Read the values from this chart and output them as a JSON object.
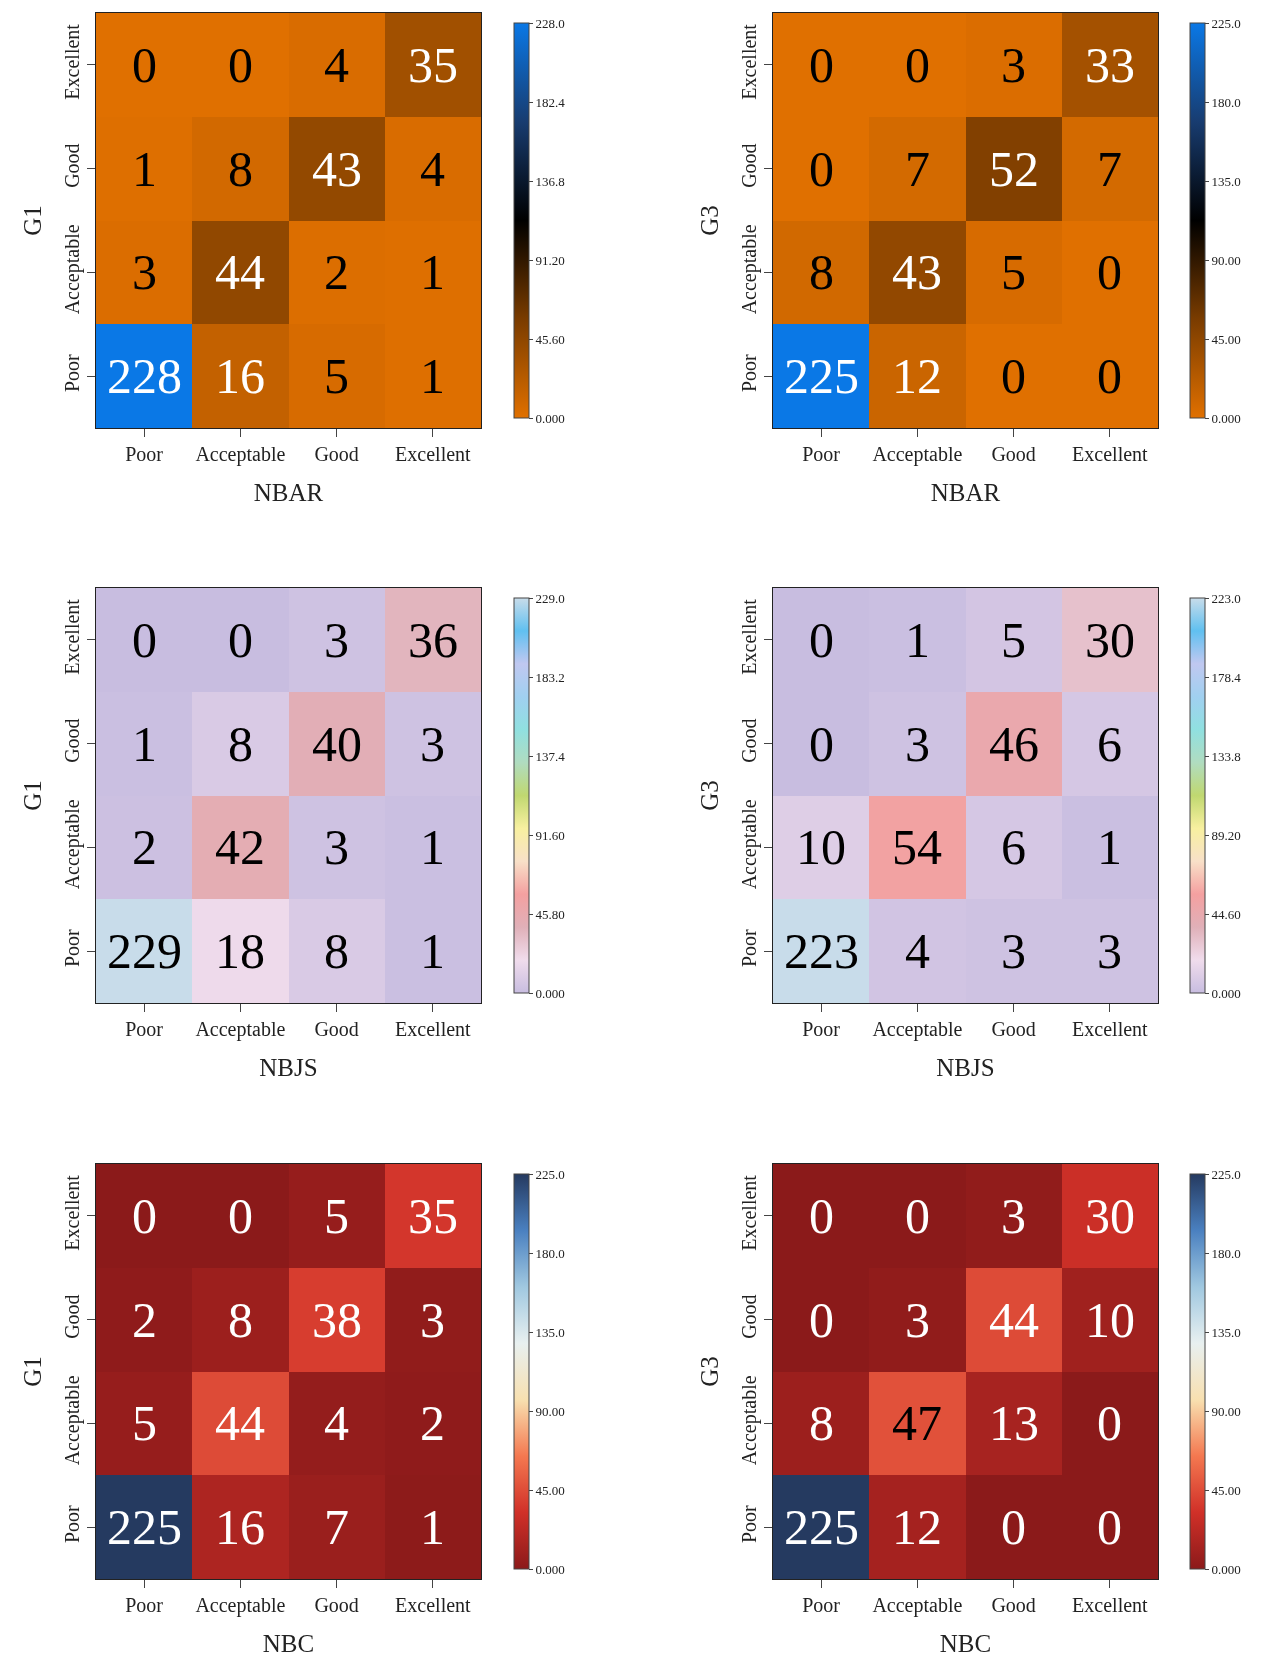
{
  "chart_data": [
    {
      "type": "heatmap",
      "xlabel": "NBAR",
      "ylabel": "G1",
      "categories": [
        "Poor",
        "Acceptable",
        "Good",
        "Excellent"
      ],
      "y_categories": [
        "Excellent",
        "Good",
        "Acceptable",
        "Poor"
      ],
      "cells": [
        [
          0,
          0,
          4,
          35
        ],
        [
          1,
          8,
          43,
          4
        ],
        [
          3,
          44,
          2,
          1
        ],
        [
          228,
          16,
          5,
          1
        ]
      ],
      "data_labels": true,
      "clim": [
        0,
        228
      ],
      "cticks": [
        {
          "value": 0,
          "label": "0.000"
        },
        {
          "value": 45.6,
          "label": "45.60"
        },
        {
          "value": 91.2,
          "label": "91.20"
        },
        {
          "value": 136.8,
          "label": "136.8"
        },
        {
          "value": 182.4,
          "label": "182.4"
        },
        {
          "value": 228,
          "label": "228.0"
        }
      ],
      "colors": [
        "#e07000",
        "#7a3c00",
        "#000000",
        "#183c70",
        "#0a78e6"
      ]
    },
    {
      "type": "heatmap",
      "xlabel": "NBAR",
      "ylabel": "G3",
      "categories": [
        "Poor",
        "Acceptable",
        "Good",
        "Excellent"
      ],
      "y_categories": [
        "Excellent",
        "Good",
        "Acceptable",
        "Poor"
      ],
      "cells": [
        [
          0,
          0,
          3,
          33
        ],
        [
          0,
          7,
          52,
          7
        ],
        [
          8,
          43,
          5,
          0
        ],
        [
          225,
          12,
          0,
          0
        ]
      ],
      "data_labels": true,
      "clim": [
        0,
        225
      ],
      "cticks": [
        {
          "value": 0,
          "label": "0.000"
        },
        {
          "value": 45,
          "label": "45.00"
        },
        {
          "value": 90,
          "label": "90.00"
        },
        {
          "value": 135,
          "label": "135.0"
        },
        {
          "value": 180,
          "label": "180.0"
        },
        {
          "value": 225,
          "label": "225.0"
        }
      ],
      "colors": [
        "#e07000",
        "#7a3c00",
        "#000000",
        "#183c70",
        "#0a78e6"
      ]
    },
    {
      "type": "heatmap",
      "xlabel": "NBJS",
      "ylabel": "G1",
      "categories": [
        "Poor",
        "Acceptable",
        "Good",
        "Excellent"
      ],
      "y_categories": [
        "Excellent",
        "Good",
        "Acceptable",
        "Poor"
      ],
      "cells": [
        [
          0,
          0,
          3,
          36
        ],
        [
          1,
          8,
          40,
          3
        ],
        [
          2,
          42,
          3,
          1
        ],
        [
          229,
          18,
          8,
          1
        ]
      ],
      "data_labels": true,
      "clim": [
        0,
        229
      ],
      "cticks": [
        {
          "value": 0,
          "label": "0.000"
        },
        {
          "value": 45.8,
          "label": "45.80"
        },
        {
          "value": 91.6,
          "label": "91.60"
        },
        {
          "value": 137.4,
          "label": "137.4"
        },
        {
          "value": 183.2,
          "label": "183.2"
        },
        {
          "value": 229,
          "label": "229.0"
        }
      ],
      "colors": [
        "#c8bde0",
        "#f0dcec",
        "#e0b0b8",
        "#f4a0a0",
        "#f8e0c8",
        "#f8f0a0",
        "#c0d870",
        "#b0dcc0",
        "#90e0e0",
        "#a0d0f0",
        "#c0c8f0",
        "#60c0f0",
        "#c8dcea"
      ]
    },
    {
      "type": "heatmap",
      "xlabel": "NBJS",
      "ylabel": "G3",
      "categories": [
        "Poor",
        "Acceptable",
        "Good",
        "Excellent"
      ],
      "y_categories": [
        "Excellent",
        "Good",
        "Acceptable",
        "Poor"
      ],
      "cells": [
        [
          0,
          1,
          5,
          30
        ],
        [
          0,
          3,
          46,
          6
        ],
        [
          10,
          54,
          6,
          1
        ],
        [
          223,
          4,
          3,
          3
        ]
      ],
      "data_labels": true,
      "clim": [
        0,
        223
      ],
      "cticks": [
        {
          "value": 0,
          "label": "0.000"
        },
        {
          "value": 44.6,
          "label": "44.60"
        },
        {
          "value": 89.2,
          "label": "89.20"
        },
        {
          "value": 133.8,
          "label": "133.8"
        },
        {
          "value": 178.4,
          "label": "178.4"
        },
        {
          "value": 223,
          "label": "223.0"
        }
      ],
      "colors": [
        "#c8bde0",
        "#f0dcec",
        "#e0b0b8",
        "#f4a0a0",
        "#f8e0c8",
        "#f8f0a0",
        "#c0d870",
        "#b0dcc0",
        "#90e0e0",
        "#a0d0f0",
        "#c0c8f0",
        "#60c0f0",
        "#c8dcea"
      ]
    },
    {
      "type": "heatmap",
      "xlabel": "NBC",
      "ylabel": "G1",
      "categories": [
        "Poor",
        "Acceptable",
        "Good",
        "Excellent"
      ],
      "y_categories": [
        "Excellent",
        "Good",
        "Acceptable",
        "Poor"
      ],
      "cells": [
        [
          0,
          0,
          5,
          35
        ],
        [
          2,
          8,
          38,
          3
        ],
        [
          5,
          44,
          4,
          2
        ],
        [
          225,
          16,
          7,
          1
        ]
      ],
      "data_labels": true,
      "clim": [
        0,
        225
      ],
      "cticks": [
        {
          "value": 0,
          "label": "0.000"
        },
        {
          "value": 45,
          "label": "45.00"
        },
        {
          "value": 90,
          "label": "90.00"
        },
        {
          "value": 135,
          "label": "135.0"
        },
        {
          "value": 180,
          "label": "180.0"
        },
        {
          "value": 225,
          "label": "225.0"
        }
      ],
      "colors": [
        "#8b1a1a",
        "#d03028",
        "#f47850",
        "#f8e0b0",
        "#e8f0f0",
        "#a0c8e0",
        "#4a80c0",
        "#253a60"
      ]
    },
    {
      "type": "heatmap",
      "xlabel": "NBC",
      "ylabel": "G3",
      "categories": [
        "Poor",
        "Acceptable",
        "Good",
        "Excellent"
      ],
      "y_categories": [
        "Excellent",
        "Good",
        "Acceptable",
        "Poor"
      ],
      "cells": [
        [
          0,
          0,
          3,
          30
        ],
        [
          0,
          3,
          44,
          10
        ],
        [
          8,
          47,
          13,
          0
        ],
        [
          225,
          12,
          0,
          0
        ]
      ],
      "data_labels": true,
      "clim": [
        0,
        225
      ],
      "cticks": [
        {
          "value": 0,
          "label": "0.000"
        },
        {
          "value": 45,
          "label": "45.00"
        },
        {
          "value": 90,
          "label": "90.00"
        },
        {
          "value": 135,
          "label": "135.0"
        },
        {
          "value": 180,
          "label": "180.0"
        },
        {
          "value": 225,
          "label": "225.0"
        }
      ],
      "colors": [
        "#8b1a1a",
        "#d03028",
        "#f47850",
        "#f8e0b0",
        "#e8f0f0",
        "#a0c8e0",
        "#4a80c0",
        "#253a60"
      ]
    }
  ]
}
